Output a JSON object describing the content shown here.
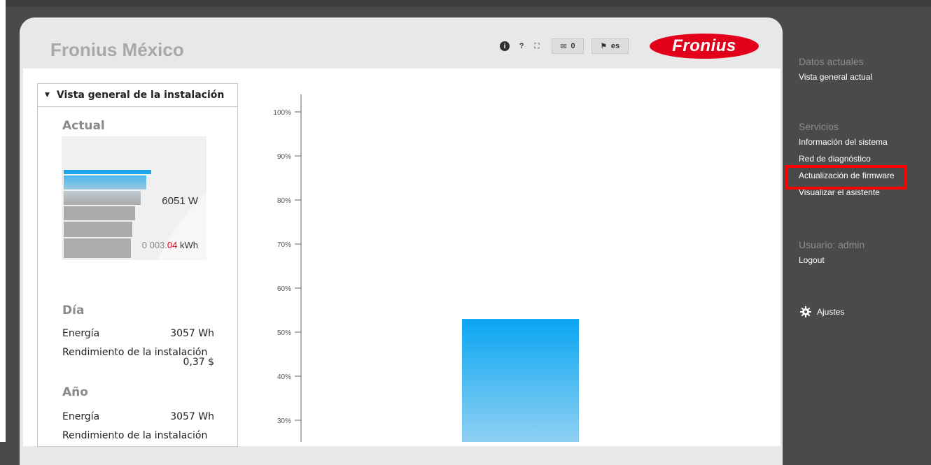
{
  "header": {
    "title": "Fronius México",
    "logo_text": "Fronius",
    "toolbar": {
      "info_label": "i",
      "help_label": "?",
      "messages_count": "0",
      "language": "es"
    }
  },
  "sidebox": {
    "title": "Vista general de la instalación",
    "actual": {
      "heading": "Actual",
      "power": "6051 W",
      "meter_grey": "0 003.",
      "meter_red": "04",
      "meter_unit": " kWh"
    },
    "dia": {
      "heading": "Día",
      "energy_label": "Energía",
      "energy_value": "3057 Wh",
      "yield_label": "Rendimiento de la instalación",
      "yield_value": "0,37 $"
    },
    "ano": {
      "heading": "Año",
      "energy_label": "Energía",
      "energy_value": "3057 Wh",
      "yield_label": "Rendimiento de la instalación"
    }
  },
  "chart_data": {
    "type": "bar",
    "y_ticks": [
      "100%",
      "90%",
      "80%",
      "70%",
      "60%",
      "50%",
      "40%",
      "30%"
    ],
    "ylim": [
      30,
      100
    ],
    "values": [
      53
    ],
    "colors": {
      "top": "#0aa6f2",
      "bottom": "#8fd0f2"
    }
  },
  "nav": {
    "datos_head": "Datos actuales",
    "datos_items": [
      "Vista general actual"
    ],
    "servicios_head": "Servicios",
    "servicios_items": [
      "Información del sistema",
      "Red de diagnóstico",
      "Actualización de firmware",
      "Visualizar el asistente"
    ],
    "usuario_head": "Usuario: admin",
    "usuario_items": [
      "Logout"
    ],
    "settings_label": "Ajustes"
  },
  "colors": {
    "brand_red": "#e2001a",
    "sidebar_bg": "#4a4a4a",
    "highlight": "#ff0000"
  }
}
